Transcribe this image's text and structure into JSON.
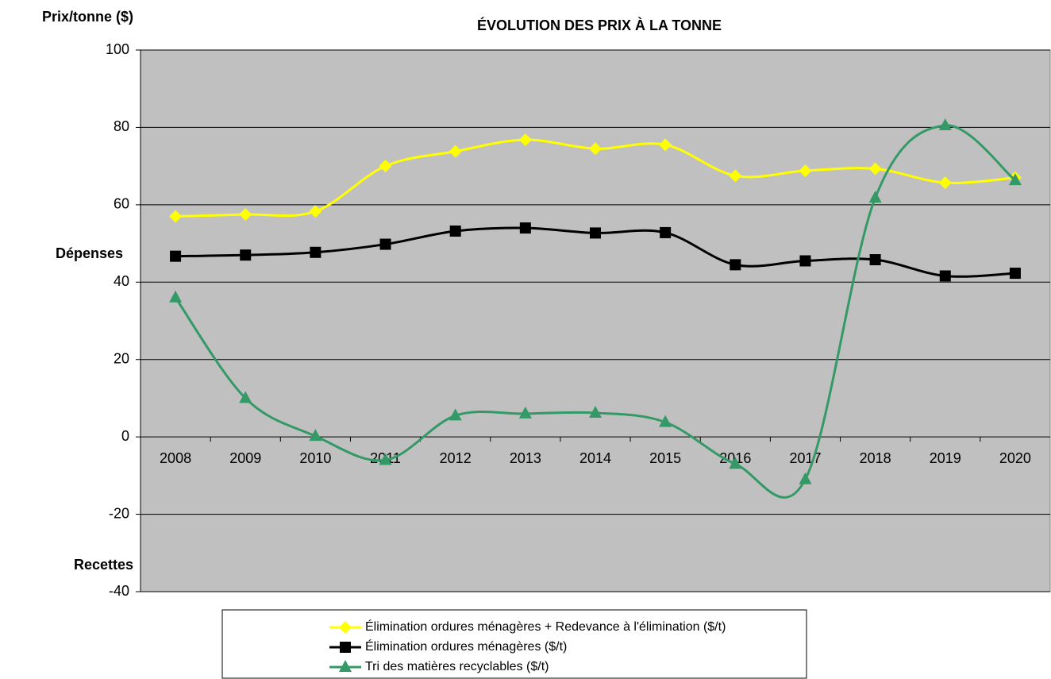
{
  "chart_data": {
    "type": "line",
    "title": "ÉVOLUTION DES PRIX À LA TONNE",
    "y_label": "Prix/tonne ($)",
    "annotations": [
      "Dépenses",
      "Recettes"
    ],
    "categories": [
      "2008",
      "2009",
      "2010",
      "2011",
      "2012",
      "2013",
      "2014",
      "2015",
      "2016",
      "2017",
      "2018",
      "2019",
      "2020"
    ],
    "series": [
      {
        "name": "Élimination ordures ménagères + Redevance à l'élimination ($/t)",
        "color": "#ffff00",
        "marker": "diamond",
        "values": [
          57,
          57.5,
          58.3,
          70,
          73.8,
          76.8,
          74.5,
          75.5,
          67.5,
          68.8,
          69.3,
          65.7,
          67
        ]
      },
      {
        "name": "Élimination ordures ménagères ($/t)",
        "color": "#000000",
        "marker": "square",
        "values": [
          46.7,
          47,
          47.7,
          49.8,
          53.2,
          54,
          52.7,
          52.8,
          44.5,
          45.5,
          45.8,
          41.6,
          42.3
        ]
      },
      {
        "name": "Tri des matières recyclables ($/t)",
        "color": "#339966",
        "marker": "triangle",
        "values": [
          36,
          10,
          0.2,
          -6,
          5.5,
          6,
          6.2,
          3.8,
          -7,
          -11,
          61.8,
          80.5,
          66.3
        ]
      }
    ],
    "ylim": [
      -40,
      100
    ],
    "yticks": [
      -40,
      -20,
      0,
      20,
      40,
      60,
      80,
      100
    ],
    "grid": true,
    "smooth": true,
    "legend": "bottom",
    "plot_background": "#c0c0c0"
  }
}
